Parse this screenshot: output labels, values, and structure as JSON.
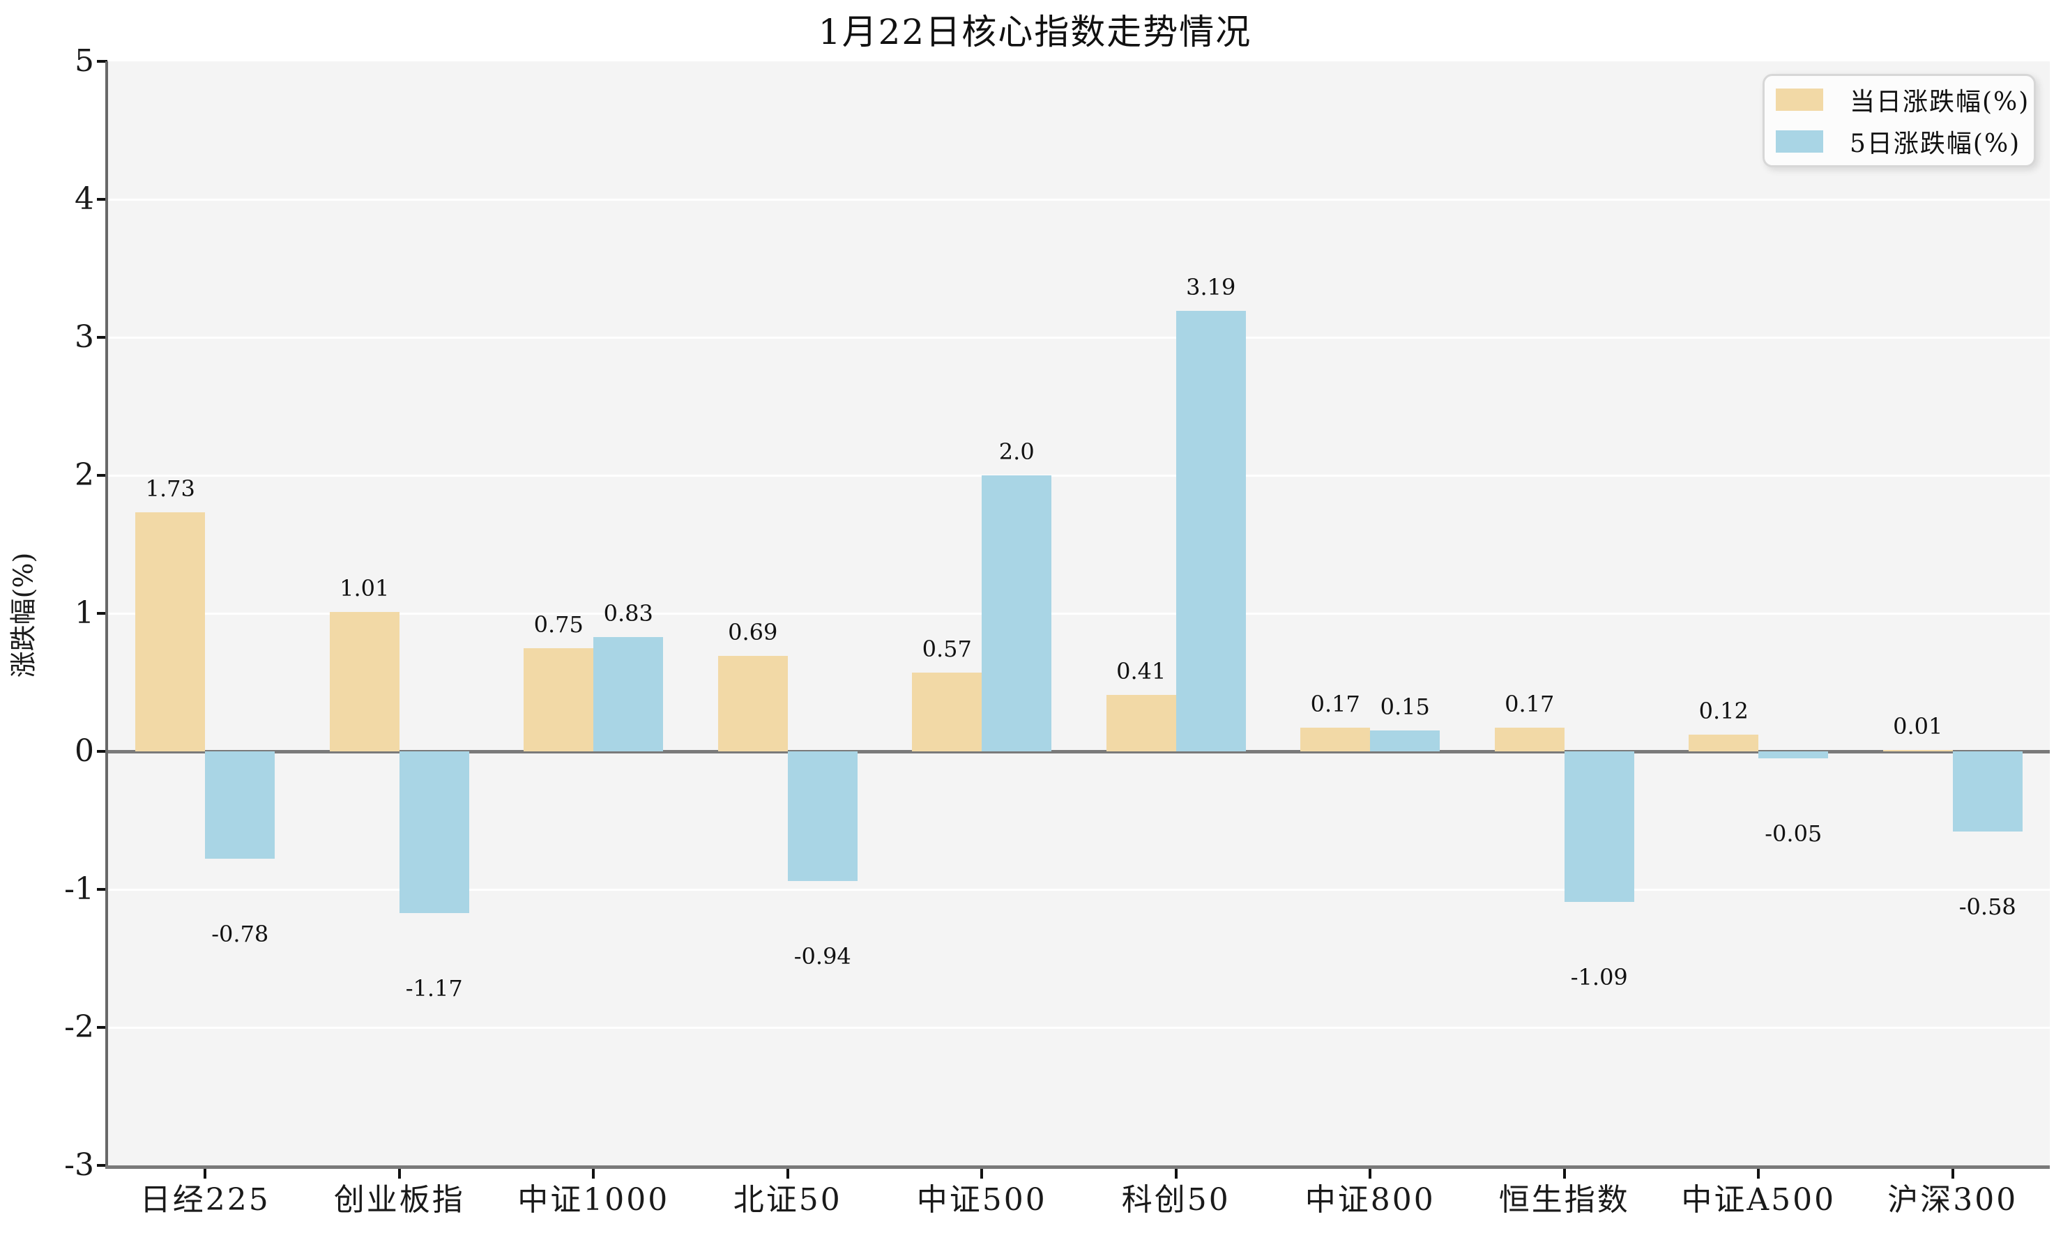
{
  "title": "1月22日核心指数走势情况",
  "chart_data": {
    "type": "bar",
    "title": "1月22日核心指数走势情况",
    "xlabel": "",
    "ylabel": "涨跌幅(%)",
    "ylim": [
      -3,
      5
    ],
    "yticks": [
      5,
      4,
      3,
      2,
      1,
      0,
      -1,
      -2,
      -3
    ],
    "grid": true,
    "legend_position": "upper right",
    "plot_background": "#f4f4f4",
    "categories": [
      "日经225",
      "创业板指",
      "中证1000",
      "北证50",
      "中证500",
      "科创50",
      "中证800",
      "恒生指数",
      "中证A500",
      "沪深300"
    ],
    "series": [
      {
        "name": "当日涨跌幅(%)",
        "color": "#f2d9a6",
        "values": [
          1.73,
          1.01,
          0.75,
          0.69,
          0.57,
          0.41,
          0.17,
          0.17,
          0.12,
          0.01
        ],
        "labels": [
          "1.73",
          "1.01",
          "0.75",
          "0.69",
          "0.57",
          "0.41",
          "0.17",
          "0.17",
          "0.12",
          "0.01"
        ]
      },
      {
        "name": "5日涨跌幅(%)",
        "color": "#a9d5e5",
        "values": [
          -0.78,
          -1.17,
          0.83,
          -0.94,
          2.0,
          3.19,
          0.15,
          -1.09,
          -0.05,
          -0.58
        ],
        "labels": [
          "-0.78",
          "-1.17",
          "0.83",
          "-0.94",
          "2.0",
          "3.19",
          "0.15",
          "-1.09",
          "-0.05",
          "-0.58"
        ]
      }
    ]
  }
}
